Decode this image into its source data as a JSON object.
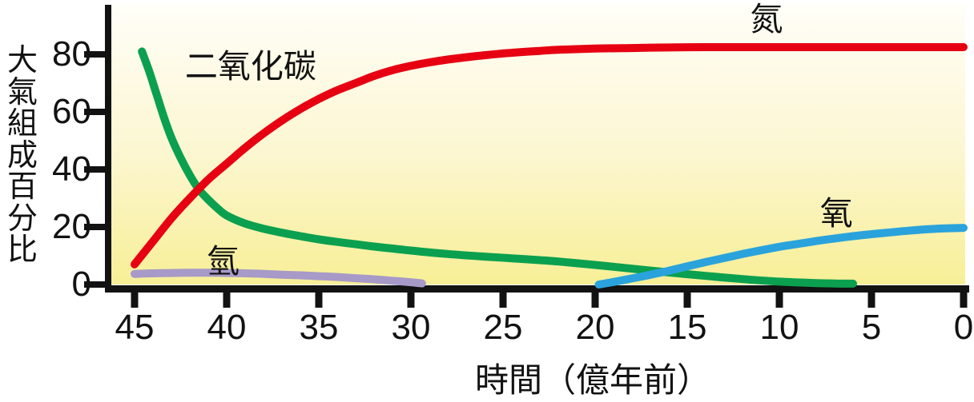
{
  "chart_data": {
    "type": "line",
    "title": "",
    "xlabel": "時間（億年前）",
    "ylabel": "大氣組成百分比",
    "x_ticks": [
      45,
      40,
      35,
      30,
      25,
      20,
      15,
      10,
      5,
      0
    ],
    "y_ticks": [
      80,
      60,
      40,
      20,
      0
    ],
    "xlim": [
      45,
      0
    ],
    "ylim": [
      0,
      100
    ],
    "x_axis_reversed": true,
    "grid": false,
    "legend": "inline-labels",
    "axis_color": "#121212",
    "plot_background_gradient": [
      "#fffef8",
      "#fcf6cf",
      "#f7ef96"
    ],
    "series": [
      {
        "id": "nitrogen",
        "name": "氮",
        "color": "#e60012",
        "z": 2,
        "label_anchor": [
          10.7,
          93.3
        ],
        "points": [
          [
            45,
            7
          ],
          [
            44,
            15
          ],
          [
            43,
            23
          ],
          [
            42,
            30
          ],
          [
            41,
            36.5
          ],
          [
            40,
            42
          ],
          [
            39,
            47.5
          ],
          [
            38,
            52.5
          ],
          [
            37,
            57
          ],
          [
            36,
            61
          ],
          [
            35,
            64.5
          ],
          [
            34,
            67.5
          ],
          [
            33,
            70
          ],
          [
            32,
            72.5
          ],
          [
            31,
            74.5
          ],
          [
            30,
            76
          ],
          [
            29,
            77.2
          ],
          [
            28,
            78.2
          ],
          [
            27,
            79
          ],
          [
            26,
            79.7
          ],
          [
            25,
            80.3
          ],
          [
            24,
            80.8
          ],
          [
            23,
            81.2
          ],
          [
            22,
            81.6
          ],
          [
            20,
            82
          ],
          [
            18,
            82.2
          ],
          [
            16,
            82.4
          ],
          [
            14,
            82.5
          ],
          [
            12,
            82.5
          ],
          [
            10,
            82.5
          ],
          [
            8,
            82.5
          ],
          [
            6,
            82.5
          ],
          [
            4,
            82.5
          ],
          [
            2,
            82.5
          ],
          [
            0,
            82.5
          ]
        ]
      },
      {
        "id": "carbon-dioxide",
        "name": "二氧化碳",
        "color": "#0ba04f",
        "z": 1,
        "label_anchor": [
          38.7,
          77
        ],
        "points": [
          [
            44.6,
            81
          ],
          [
            44.2,
            74
          ],
          [
            43.8,
            66
          ],
          [
            43.4,
            58
          ],
          [
            43,
            51
          ],
          [
            42.5,
            44
          ],
          [
            42,
            38
          ],
          [
            41.5,
            33
          ],
          [
            41,
            29.5
          ],
          [
            40.5,
            26.5
          ],
          [
            40,
            24
          ],
          [
            39,
            21.2
          ],
          [
            38,
            19.4
          ],
          [
            37,
            18
          ],
          [
            36,
            16.8
          ],
          [
            35,
            15.7
          ],
          [
            34,
            14.8
          ],
          [
            33,
            14
          ],
          [
            32,
            13.2
          ],
          [
            31,
            12.5
          ],
          [
            30,
            11.8
          ],
          [
            28,
            10.6
          ],
          [
            26,
            9.7
          ],
          [
            24,
            8.9
          ],
          [
            22,
            8
          ],
          [
            20,
            6.8
          ],
          [
            18,
            5.5
          ],
          [
            16,
            4.2
          ],
          [
            14,
            3
          ],
          [
            12,
            1.9
          ],
          [
            10,
            1
          ],
          [
            8,
            0.5
          ],
          [
            7,
            0.35
          ],
          [
            6,
            0.3
          ]
        ]
      },
      {
        "id": "hydrogen",
        "name": "氫",
        "color": "#a79ac8",
        "z": 0,
        "label_anchor": [
          40.2,
          9.2
        ],
        "points": [
          [
            45,
            3.7
          ],
          [
            44,
            3.9
          ],
          [
            43,
            4
          ],
          [
            42,
            4.1
          ],
          [
            41,
            4.1
          ],
          [
            40,
            4
          ],
          [
            39,
            3.9
          ],
          [
            38,
            3.7
          ],
          [
            37,
            3.4
          ],
          [
            36,
            3.2
          ],
          [
            35,
            2.9
          ],
          [
            34,
            2.6
          ],
          [
            33,
            2.2
          ],
          [
            32,
            1.8
          ],
          [
            31,
            1.3
          ],
          [
            30,
            0.8
          ],
          [
            29.4,
            0.4
          ]
        ]
      },
      {
        "id": "oxygen",
        "name": "氧",
        "color": "#2aa3dc",
        "z": 3,
        "label_anchor": [
          6.9,
          25.8
        ],
        "points": [
          [
            19.8,
            0
          ],
          [
            19,
            0.9
          ],
          [
            18,
            2.1
          ],
          [
            17,
            3.4
          ],
          [
            16,
            4.8
          ],
          [
            15,
            6.3
          ],
          [
            14,
            7.8
          ],
          [
            13,
            9.2
          ],
          [
            12,
            10.6
          ],
          [
            11,
            11.9
          ],
          [
            10,
            13.1
          ],
          [
            9,
            14.1
          ],
          [
            8,
            15.1
          ],
          [
            7,
            16
          ],
          [
            6,
            16.8
          ],
          [
            5,
            17.5
          ],
          [
            4,
            18.1
          ],
          [
            3,
            18.7
          ],
          [
            2,
            19.2
          ],
          [
            1,
            19.5
          ],
          [
            0,
            19.7
          ]
        ]
      }
    ]
  }
}
